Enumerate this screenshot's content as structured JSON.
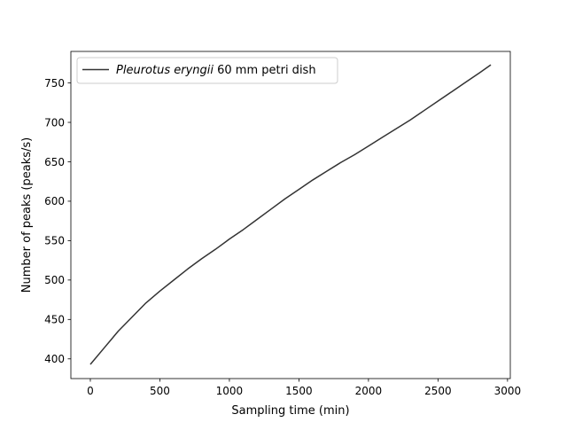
{
  "chart_data": {
    "type": "line",
    "title": "",
    "xlabel": "Sampling time (min)",
    "ylabel": "Number of peaks (peaks/s)",
    "xlim": [
      -140,
      3020
    ],
    "ylim": [
      375,
      790
    ],
    "xticks": [
      0,
      500,
      1000,
      1500,
      2000,
      2500,
      3000
    ],
    "yticks": [
      400,
      450,
      500,
      550,
      600,
      650,
      700,
      750
    ],
    "grid": false,
    "legend_position": "top-left",
    "series": [
      {
        "name_italic": "Pleurotus eryngii",
        "name_rest": " 60 mm petri dish",
        "color": "#333333",
        "x": [
          0,
          100,
          200,
          300,
          400,
          500,
          600,
          700,
          800,
          900,
          1000,
          1100,
          1200,
          1300,
          1400,
          1500,
          1600,
          1700,
          1800,
          1900,
          2000,
          2100,
          2200,
          2300,
          2400,
          2500,
          2600,
          2700,
          2800,
          2880
        ],
        "values": [
          393,
          414,
          435,
          453,
          471,
          486,
          500,
          514,
          527,
          539,
          552,
          564,
          577,
          590,
          603,
          615,
          627,
          638,
          649,
          659,
          670,
          681,
          692,
          703,
          715,
          727,
          739,
          751,
          763,
          773
        ]
      }
    ]
  }
}
